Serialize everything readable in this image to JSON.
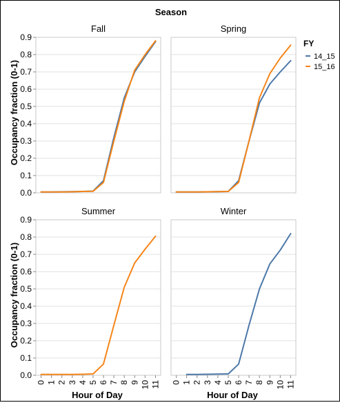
{
  "chart_data": {
    "type": "line",
    "facet_title": "Season",
    "xlabel": "Hour of Day",
    "ylabel": "Occupancy fraction (0-1)",
    "ylim": [
      0,
      0.9
    ],
    "y_ticks": [
      "0.0",
      "0.1",
      "0.2",
      "0.3",
      "0.4",
      "0.5",
      "0.6",
      "0.7",
      "0.8",
      "0.9"
    ],
    "x_ticks": [
      "0",
      "1",
      "2",
      "3",
      "4",
      "5",
      "6",
      "7",
      "8",
      "9",
      "10",
      "11"
    ],
    "grid": true,
    "legend": {
      "title": "FY",
      "placement": "top-right",
      "entries": [
        {
          "name": "14_15",
          "color": "#4c78a8"
        },
        {
          "name": "15_16",
          "color": "#f58518"
        }
      ]
    },
    "panels": [
      {
        "title": "Fall",
        "series": [
          {
            "name": "14_15",
            "x": [
              0,
              1,
              2,
              3,
              4,
              5,
              6,
              7,
              8,
              9,
              10,
              11
            ],
            "values": [
              0.005,
              0.005,
              0.006,
              0.007,
              0.008,
              0.01,
              0.07,
              0.32,
              0.55,
              0.7,
              0.79,
              0.875
            ]
          },
          {
            "name": "15_16",
            "x": [
              0,
              1,
              2,
              3,
              4,
              5,
              6,
              7,
              8,
              9,
              10,
              11
            ],
            "values": [
              0.005,
              0.005,
              0.005,
              0.006,
              0.008,
              0.009,
              0.06,
              0.3,
              0.53,
              0.71,
              0.8,
              0.88
            ]
          }
        ]
      },
      {
        "title": "Spring",
        "series": [
          {
            "name": "14_15",
            "x": [
              0,
              1,
              2,
              3,
              4,
              5,
              6,
              7,
              8,
              9,
              10,
              11
            ],
            "values": [
              0.005,
              0.005,
              0.005,
              0.006,
              0.007,
              0.008,
              0.07,
              0.3,
              0.52,
              0.63,
              0.7,
              0.765
            ]
          },
          {
            "name": "15_16",
            "x": [
              0,
              1,
              2,
              3,
              4,
              5,
              6,
              7,
              8,
              9,
              10,
              11
            ],
            "values": [
              0.005,
              0.005,
              0.005,
              0.006,
              0.007,
              0.008,
              0.06,
              0.3,
              0.55,
              0.69,
              0.78,
              0.855
            ]
          }
        ]
      },
      {
        "title": "Summer",
        "series": [
          {
            "name": "15_16",
            "x": [
              0,
              1,
              2,
              3,
              4,
              5,
              6,
              7,
              8,
              9,
              10,
              11
            ],
            "values": [
              0.005,
              0.005,
              0.005,
              0.005,
              0.006,
              0.008,
              0.065,
              0.29,
              0.51,
              0.65,
              0.73,
              0.805
            ]
          }
        ]
      },
      {
        "title": "Winter",
        "series": [
          {
            "name": "14_15",
            "x": [
              1,
              2,
              3,
              4,
              5,
              6,
              7,
              8,
              9,
              10,
              11
            ],
            "values": [
              0.005,
              0.005,
              0.006,
              0.007,
              0.008,
              0.065,
              0.29,
              0.5,
              0.645,
              0.725,
              0.82
            ]
          }
        ]
      }
    ]
  }
}
